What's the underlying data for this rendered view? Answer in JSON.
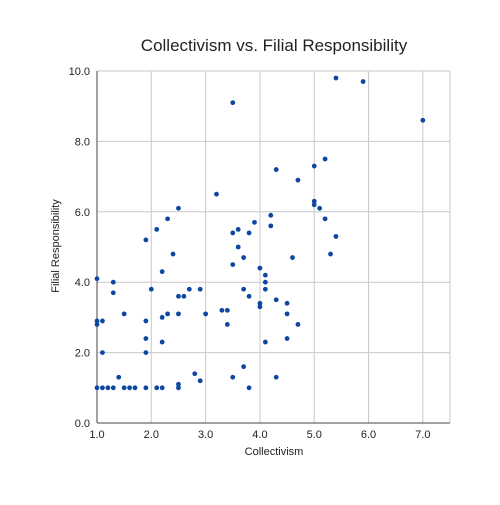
{
  "chart_data": {
    "type": "scatter",
    "title": "Collectivism vs. Filial Responsibility",
    "xlabel": "Collectivism",
    "ylabel": "Filial Responsibility",
    "xlim": [
      1.0,
      7.5
    ],
    "ylim": [
      0.0,
      10.0
    ],
    "x_ticks": [
      1.0,
      2.0,
      3.0,
      4.0,
      5.0,
      6.0,
      7.0
    ],
    "y_ticks": [
      0.0,
      2.0,
      4.0,
      6.0,
      8.0,
      10.0
    ],
    "x_tick_labels": [
      "1.0",
      "2.0",
      "3.0",
      "4.0",
      "5.0",
      "6.0",
      "7.0"
    ],
    "y_tick_labels": [
      "0.0",
      "2.0",
      "4.0",
      "6.0",
      "8.0",
      "10.0"
    ],
    "grid": true,
    "marker_color": "#0d47a1",
    "points": [
      {
        "x": 1.0,
        "y": 4.1
      },
      {
        "x": 1.0,
        "y": 2.9
      },
      {
        "x": 1.0,
        "y": 2.8
      },
      {
        "x": 1.0,
        "y": 1.0
      },
      {
        "x": 1.1,
        "y": 2.9
      },
      {
        "x": 1.1,
        "y": 2.0
      },
      {
        "x": 1.1,
        "y": 1.0
      },
      {
        "x": 1.2,
        "y": 1.0
      },
      {
        "x": 1.3,
        "y": 4.0
      },
      {
        "x": 1.3,
        "y": 3.7
      },
      {
        "x": 1.3,
        "y": 1.0
      },
      {
        "x": 1.4,
        "y": 1.3
      },
      {
        "x": 1.5,
        "y": 3.1
      },
      {
        "x": 1.5,
        "y": 1.0
      },
      {
        "x": 1.6,
        "y": 1.0
      },
      {
        "x": 1.7,
        "y": 1.0
      },
      {
        "x": 1.9,
        "y": 5.2
      },
      {
        "x": 1.9,
        "y": 2.9
      },
      {
        "x": 1.9,
        "y": 2.4
      },
      {
        "x": 1.9,
        "y": 2.0
      },
      {
        "x": 1.9,
        "y": 1.0
      },
      {
        "x": 2.0,
        "y": 3.8
      },
      {
        "x": 2.1,
        "y": 5.5
      },
      {
        "x": 2.1,
        "y": 1.0
      },
      {
        "x": 2.2,
        "y": 4.3
      },
      {
        "x": 2.2,
        "y": 3.0
      },
      {
        "x": 2.2,
        "y": 2.3
      },
      {
        "x": 2.2,
        "y": 1.0
      },
      {
        "x": 2.3,
        "y": 5.8
      },
      {
        "x": 2.3,
        "y": 3.1
      },
      {
        "x": 2.4,
        "y": 4.8
      },
      {
        "x": 2.5,
        "y": 6.1
      },
      {
        "x": 2.5,
        "y": 3.6
      },
      {
        "x": 2.5,
        "y": 3.1
      },
      {
        "x": 2.5,
        "y": 1.1
      },
      {
        "x": 2.5,
        "y": 1.0
      },
      {
        "x": 2.6,
        "y": 3.6
      },
      {
        "x": 2.7,
        "y": 3.8
      },
      {
        "x": 2.8,
        "y": 1.4
      },
      {
        "x": 2.9,
        "y": 3.8
      },
      {
        "x": 2.9,
        "y": 1.2
      },
      {
        "x": 3.0,
        "y": 3.1
      },
      {
        "x": 3.2,
        "y": 6.5
      },
      {
        "x": 3.3,
        "y": 3.2
      },
      {
        "x": 3.4,
        "y": 3.2
      },
      {
        "x": 3.4,
        "y": 2.8
      },
      {
        "x": 3.5,
        "y": 9.1
      },
      {
        "x": 3.5,
        "y": 5.4
      },
      {
        "x": 3.5,
        "y": 4.5
      },
      {
        "x": 3.5,
        "y": 1.3
      },
      {
        "x": 3.6,
        "y": 5.5
      },
      {
        "x": 3.6,
        "y": 5.0
      },
      {
        "x": 3.7,
        "y": 4.7
      },
      {
        "x": 3.7,
        "y": 3.8
      },
      {
        "x": 3.7,
        "y": 1.6
      },
      {
        "x": 3.8,
        "y": 5.4
      },
      {
        "x": 3.8,
        "y": 3.6
      },
      {
        "x": 3.8,
        "y": 1.0
      },
      {
        "x": 3.9,
        "y": 5.7
      },
      {
        "x": 4.0,
        "y": 4.4
      },
      {
        "x": 4.0,
        "y": 3.4
      },
      {
        "x": 4.0,
        "y": 3.3
      },
      {
        "x": 4.1,
        "y": 4.2
      },
      {
        "x": 4.1,
        "y": 4.0
      },
      {
        "x": 4.1,
        "y": 3.8
      },
      {
        "x": 4.1,
        "y": 2.3
      },
      {
        "x": 4.2,
        "y": 5.9
      },
      {
        "x": 4.2,
        "y": 5.6
      },
      {
        "x": 4.3,
        "y": 7.2
      },
      {
        "x": 4.3,
        "y": 3.5
      },
      {
        "x": 4.3,
        "y": 1.3
      },
      {
        "x": 4.5,
        "y": 3.4
      },
      {
        "x": 4.5,
        "y": 3.1
      },
      {
        "x": 4.5,
        "y": 2.4
      },
      {
        "x": 4.6,
        "y": 4.7
      },
      {
        "x": 4.7,
        "y": 6.9
      },
      {
        "x": 4.7,
        "y": 2.8
      },
      {
        "x": 5.0,
        "y": 7.3
      },
      {
        "x": 5.0,
        "y": 6.3
      },
      {
        "x": 5.0,
        "y": 6.2
      },
      {
        "x": 5.1,
        "y": 6.1
      },
      {
        "x": 5.2,
        "y": 7.5
      },
      {
        "x": 5.2,
        "y": 5.8
      },
      {
        "x": 5.3,
        "y": 4.8
      },
      {
        "x": 5.4,
        "y": 9.8
      },
      {
        "x": 5.4,
        "y": 5.3
      },
      {
        "x": 5.9,
        "y": 9.7
      },
      {
        "x": 7.0,
        "y": 8.6
      }
    ]
  }
}
